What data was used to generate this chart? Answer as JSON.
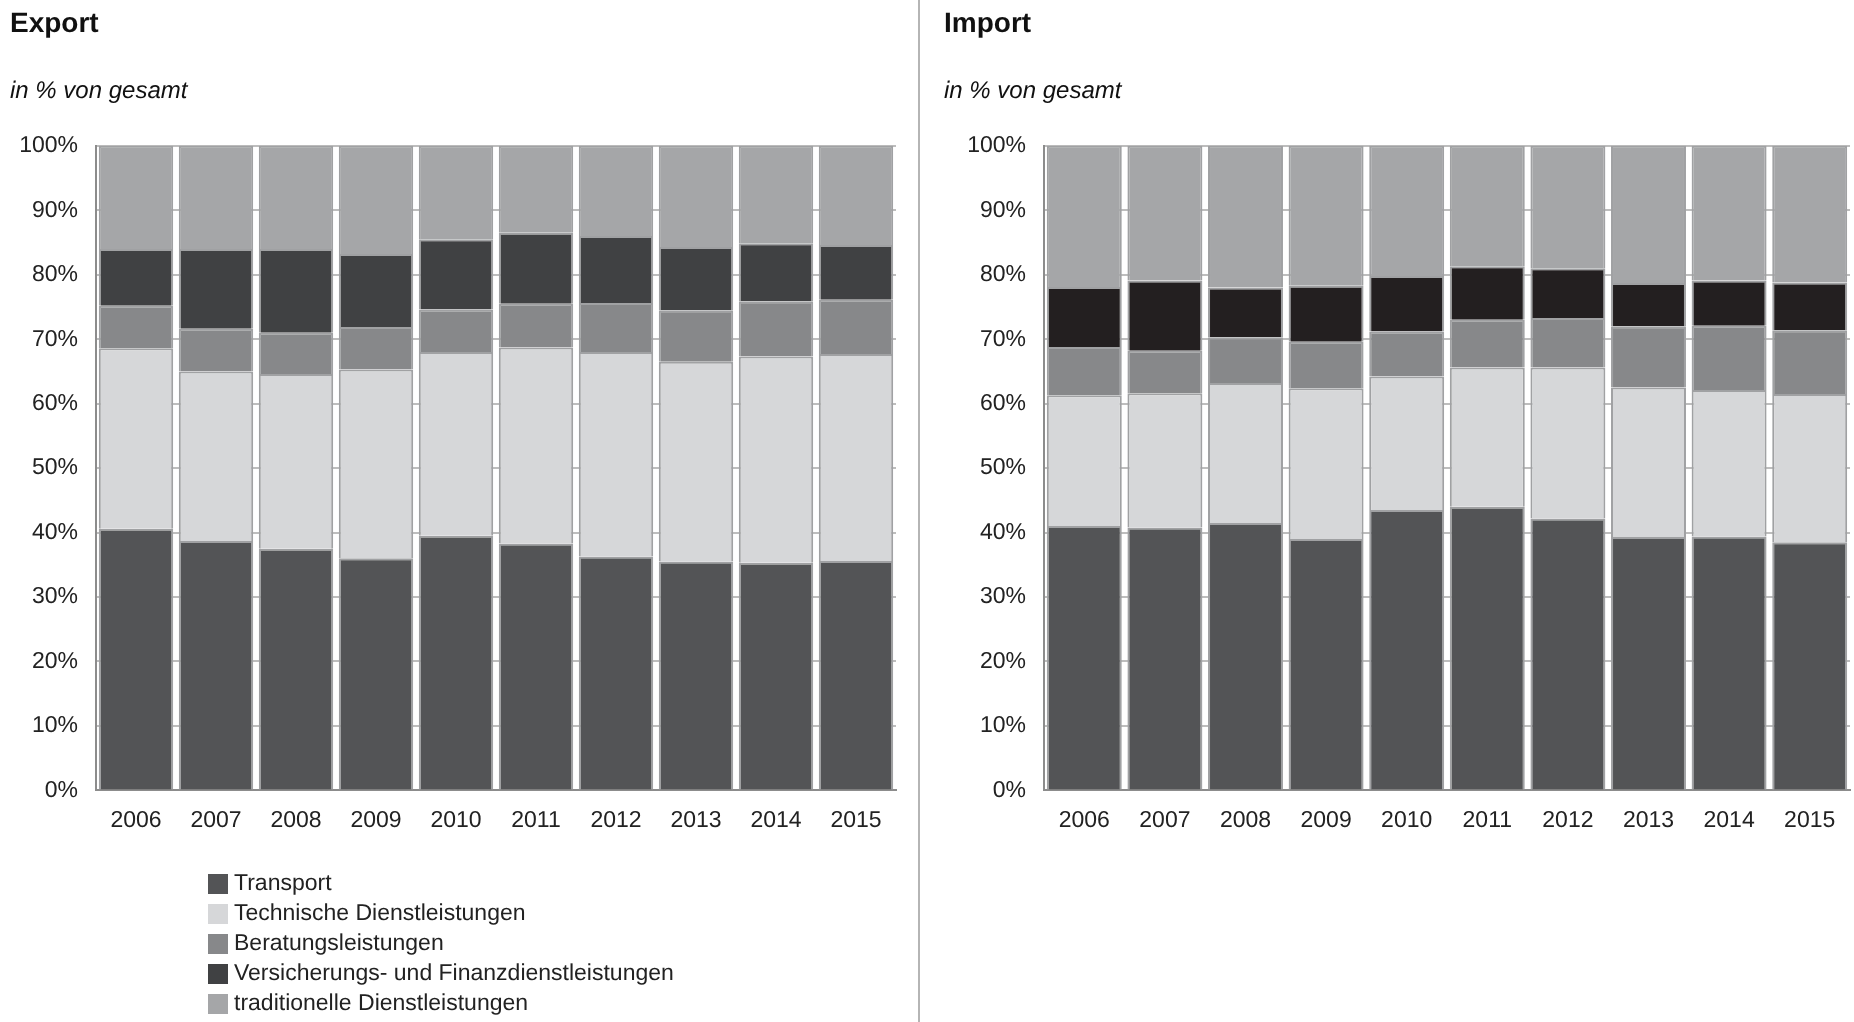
{
  "chart_data": [
    {
      "type": "bar",
      "title": "Export",
      "subtitle": "in % von gesamt",
      "categories": [
        "2006",
        "2007",
        "2008",
        "2009",
        "2010",
        "2011",
        "2012",
        "2013",
        "2014",
        "2015"
      ],
      "stacked": true,
      "series": [
        {
          "name": "Transport",
          "color": "#535456",
          "values": [
            40.6,
            38.7,
            37.5,
            36.0,
            39.5,
            38.3,
            36.3,
            35.5,
            35.3,
            35.6
          ]
        },
        {
          "name": "Technische Dienstleistungen",
          "color": "#d6d7d9",
          "values": [
            28.0,
            26.3,
            27.1,
            29.3,
            28.5,
            30.4,
            31.7,
            31.0,
            32.0,
            32.1
          ]
        },
        {
          "name": "Beratungsleistungen",
          "color": "#87888a",
          "values": [
            6.6,
            6.6,
            6.4,
            6.6,
            6.6,
            6.8,
            7.6,
            8.0,
            8.6,
            8.4
          ]
        },
        {
          "name": "Versicherungs- und Finanzdienstleistungen",
          "color": "#404143",
          "values": [
            8.8,
            12.4,
            13.0,
            11.3,
            10.9,
            11.0,
            10.4,
            9.8,
            9.0,
            8.5
          ]
        },
        {
          "name": "traditionelle Dienstleistungen",
          "color": "#a5a6a8",
          "values": [
            16.0,
            16.0,
            16.0,
            16.8,
            14.5,
            13.5,
            14.0,
            15.7,
            15.1,
            15.4
          ]
        }
      ],
      "ylim": [
        0,
        100
      ],
      "yticks": [
        {
          "value": 0,
          "label": "0%"
        },
        {
          "value": 10,
          "label": "10%"
        },
        {
          "value": 20,
          "label": "20%"
        },
        {
          "value": 30,
          "label": "30%"
        },
        {
          "value": 40,
          "label": "40%"
        },
        {
          "value": 50,
          "label": "50%"
        },
        {
          "value": 60,
          "label": "60%"
        },
        {
          "value": 70,
          "label": "70%"
        },
        {
          "value": 80,
          "label": "80%"
        },
        {
          "value": 90,
          "label": "90%"
        },
        {
          "value": 100,
          "label": "100%"
        }
      ],
      "grid": "y",
      "legend": "bottom"
    },
    {
      "type": "bar",
      "title": "Import",
      "subtitle": "in % von gesamt",
      "categories": [
        "2006",
        "2007",
        "2008",
        "2009",
        "2010",
        "2011",
        "2012",
        "2013",
        "2014",
        "2015"
      ],
      "stacked": true,
      "series": [
        {
          "color": "#535456",
          "values": [
            41.0,
            40.8,
            41.5,
            39.0,
            43.5,
            44.0,
            42.2,
            39.3,
            39.4,
            38.5
          ]
        },
        {
          "color": "#d6d7d9",
          "values": [
            20.3,
            20.8,
            21.7,
            23.4,
            20.7,
            21.6,
            23.4,
            23.2,
            22.7,
            23.0
          ]
        },
        {
          "color": "#87888a",
          "values": [
            7.5,
            6.6,
            7.1,
            7.2,
            7.0,
            7.4,
            7.7,
            9.5,
            10.0,
            9.9
          ]
        },
        {
          "color": "#231f20",
          "values": [
            9.3,
            10.9,
            7.7,
            8.7,
            8.6,
            8.3,
            7.7,
            6.7,
            7.0,
            7.4
          ]
        },
        {
          "color": "#a5a6a8",
          "values": [
            21.9,
            20.9,
            22.0,
            21.7,
            20.2,
            18.7,
            19.0,
            21.3,
            20.9,
            21.2
          ]
        }
      ],
      "ylim": [
        0,
        100
      ],
      "yticks": [
        {
          "value": 0,
          "label": "0%"
        },
        {
          "value": 10,
          "label": "10%"
        },
        {
          "value": 20,
          "label": "20%"
        },
        {
          "value": 30,
          "label": "30%"
        },
        {
          "value": 40,
          "label": "40%"
        },
        {
          "value": 50,
          "label": "50%"
        },
        {
          "value": 60,
          "label": "60%"
        },
        {
          "value": 70,
          "label": "70%"
        },
        {
          "value": 80,
          "label": "80%"
        },
        {
          "value": 90,
          "label": "90%"
        },
        {
          "value": 100,
          "label": "100%"
        }
      ],
      "grid": "y"
    }
  ]
}
